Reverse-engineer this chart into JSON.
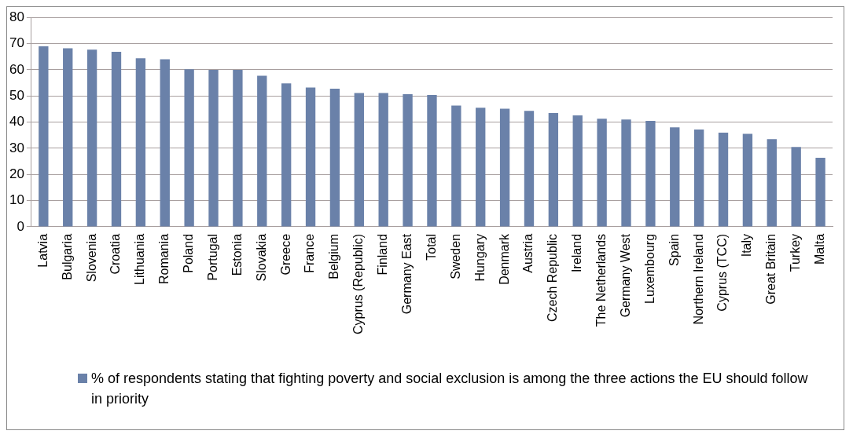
{
  "chart_data": {
    "type": "bar",
    "categories": [
      "Latvia",
      "Bulgaria",
      "Slovenia",
      "Croatia",
      "Lithuania",
      "Romania",
      "Poland",
      "Portugal",
      "Estonia",
      "Slovakia",
      "Greece",
      "France",
      "Belgium",
      "Cyprus (Republic)",
      "Finland",
      "Germany East",
      "Total",
      "Sweden",
      "Hungary",
      "Denmark",
      "Austria",
      "Czech Republic",
      "Ireland",
      "The Netherlands",
      "Germany West",
      "Luxembourg",
      "Spain",
      "Northern Ireland",
      "Cyprus (TCC)",
      "Italy",
      "Great Britain",
      "Turkey",
      "Malta"
    ],
    "series": [
      {
        "name": "% of respondents stating that fighting poverty and social exclusion is among the three actions the EU should follow in priority",
        "color": "#6a81a9",
        "values": [
          69,
          68.2,
          67.7,
          66.9,
          64.4,
          64,
          60.2,
          60,
          60,
          57.7,
          54.8,
          53.2,
          52.8,
          51.1,
          51.1,
          50.7,
          50.4,
          46.3,
          45.5,
          45.1,
          44.3,
          43.5,
          42.6,
          41.3,
          41,
          40.5,
          38,
          37.2,
          36,
          35.5,
          33.5,
          30.5,
          26.4
        ]
      }
    ],
    "ylim": [
      0,
      80
    ],
    "yticks": [
      0,
      10,
      20,
      30,
      40,
      50,
      60,
      70,
      80
    ],
    "grid": "y",
    "legend": "bottom"
  }
}
